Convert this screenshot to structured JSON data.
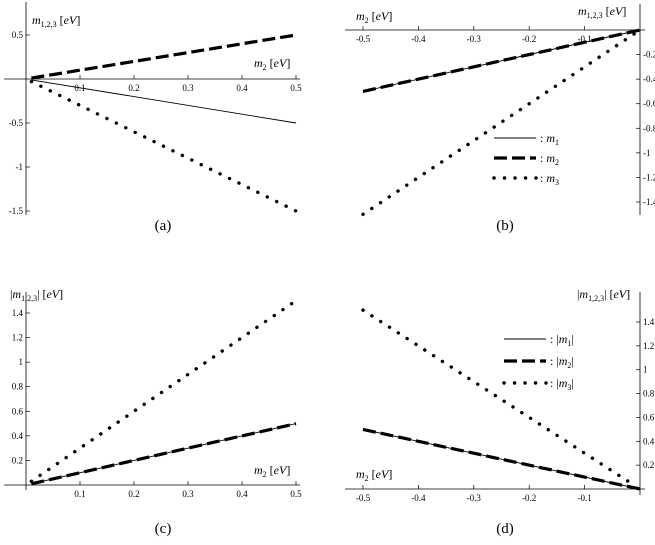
{
  "chart_data": [
    {
      "id": "a",
      "type": "line",
      "caption": "(a)",
      "ylabel": "m1,2,3 [eV]",
      "xlabel": "m2 [eV]",
      "xlim": [
        0,
        0.5
      ],
      "ylim": [
        -1.55,
        0.58
      ],
      "xticks": [
        0.1,
        0.2,
        0.3,
        0.4,
        0.5
      ],
      "xtick_labels": [
        "0.1",
        "0.2",
        "0.3",
        "0.4",
        "0.5"
      ],
      "yticks": [
        0.5,
        -0.5,
        -1,
        -1.5
      ],
      "ytick_labels": [
        "0.5",
        "-0.5",
        "-1",
        "-1.5"
      ],
      "series": [
        {
          "style": "solid",
          "x": [
            0.01,
            0.5
          ],
          "y": [
            -0.01,
            -0.5
          ]
        },
        {
          "style": "dashed",
          "x": [
            0.01,
            0.5
          ],
          "y": [
            0.01,
            0.5
          ]
        },
        {
          "style": "dotted",
          "x": [
            0.01,
            0.5
          ],
          "y": [
            -0.03,
            -1.5
          ]
        }
      ]
    },
    {
      "id": "b",
      "type": "line",
      "caption": "(b)",
      "ylabel": "m1,2,3 [eV]",
      "xlabel": "m2 [eV]",
      "xlim": [
        -0.5,
        0
      ],
      "ylim": [
        -1.55,
        0.05
      ],
      "xticks": [
        -0.5,
        -0.4,
        -0.3,
        -0.2,
        -0.1
      ],
      "xtick_labels": [
        "-0.5",
        "-0.4",
        "-0.3",
        "-0.2",
        "-0.1"
      ],
      "yticks": [
        -0.2,
        -0.4,
        -0.6,
        -0.8,
        -1,
        -1.2,
        -1.4
      ],
      "ytick_labels": [
        "-0.2",
        "-0.4",
        "-0.6",
        "-0.8",
        "-1",
        "-1.2",
        "-1.4"
      ],
      "series": [
        {
          "name": ": m1",
          "style": "solid",
          "x": [
            -0.5,
            0
          ],
          "y": [
            -0.5,
            0
          ]
        },
        {
          "name": ": m2",
          "style": "dashed",
          "x": [
            -0.5,
            0
          ],
          "y": [
            -0.5,
            0
          ]
        },
        {
          "name": ": m3",
          "style": "dotted",
          "x": [
            -0.5,
            -0.01
          ],
          "y": [
            -1.5,
            -0.03
          ]
        }
      ]
    },
    {
      "id": "c",
      "type": "line",
      "caption": "(c)",
      "ylabel": "|m1,2,3| [eV]",
      "xlabel": "m2 [eV]",
      "xlim": [
        0,
        0.5
      ],
      "ylim": [
        0,
        1.55
      ],
      "xticks": [
        0.1,
        0.2,
        0.3,
        0.4,
        0.5
      ],
      "xtick_labels": [
        "0.1",
        "0.2",
        "0.3",
        "0.4",
        "0.5"
      ],
      "yticks": [
        0.2,
        0.4,
        0.6,
        0.8,
        1,
        1.2,
        1.4
      ],
      "ytick_labels": [
        "0.2",
        "0.4",
        "0.6",
        "0.8",
        "1",
        "1.2",
        "1.4"
      ],
      "series": [
        {
          "style": "solid",
          "x": [
            0.01,
            0.5
          ],
          "y": [
            0.01,
            0.5
          ]
        },
        {
          "style": "dashed",
          "x": [
            0.01,
            0.5
          ],
          "y": [
            0.01,
            0.5
          ]
        },
        {
          "style": "dotted",
          "x": [
            0.01,
            0.5
          ],
          "y": [
            0.03,
            1.5
          ]
        }
      ]
    },
    {
      "id": "d",
      "type": "line",
      "caption": "(d)",
      "ylabel": "|m1,2,3| [eV]",
      "xlabel": "m2 [eV]",
      "xlim": [
        -0.5,
        0
      ],
      "ylim": [
        0,
        1.55
      ],
      "xticks": [
        -0.5,
        -0.4,
        -0.3,
        -0.2,
        -0.1
      ],
      "xtick_labels": [
        "-0.5",
        "-0.4",
        "-0.3",
        "-0.2",
        "-0.1"
      ],
      "yticks": [
        0.2,
        0.4,
        0.6,
        0.8,
        1,
        1.2,
        1.4
      ],
      "ytick_labels": [
        "0.2",
        "0.4",
        "0.6",
        "0.8",
        "1",
        "1.2",
        "1.4"
      ],
      "series": [
        {
          "name": ": |m1|",
          "style": "solid",
          "x": [
            -0.5,
            0
          ],
          "y": [
            0.5,
            0
          ]
        },
        {
          "name": ": |m2|",
          "style": "dashed",
          "x": [
            -0.5,
            0
          ],
          "y": [
            0.5,
            0
          ]
        },
        {
          "name": ": |m3|",
          "style": "dotted",
          "x": [
            -0.5,
            -0.01
          ],
          "y": [
            1.5,
            0.03
          ]
        }
      ]
    }
  ],
  "legends": {
    "b": {
      "placement": "center-right",
      "entries": [
        {
          "style": "solid",
          "prefix": ": ",
          "base": "m",
          "sub": "1",
          "abs": false
        },
        {
          "style": "dashed",
          "prefix": ": ",
          "base": "m",
          "sub": "2",
          "abs": false
        },
        {
          "style": "dotted",
          "prefix": ": ",
          "base": "m",
          "sub": "3",
          "abs": false
        }
      ]
    },
    "d": {
      "placement": "top-right",
      "entries": [
        {
          "style": "solid",
          "prefix": ": ",
          "base": "m",
          "sub": "1",
          "abs": true
        },
        {
          "style": "dashed",
          "prefix": ": ",
          "base": "m",
          "sub": "2",
          "abs": true
        },
        {
          "style": "dotted",
          "prefix": ": ",
          "base": "m",
          "sub": "3",
          "abs": true
        }
      ]
    }
  },
  "axis_label_parts": {
    "y_ab": {
      "base": "m",
      "sub": "1,2,3",
      "unit": "eV",
      "abs": false
    },
    "y_cd": {
      "base": "m",
      "sub": "1,2,3",
      "unit": "eV",
      "abs": true
    },
    "x": {
      "base": "m",
      "sub": "2",
      "unit": "eV",
      "abs": false
    }
  }
}
